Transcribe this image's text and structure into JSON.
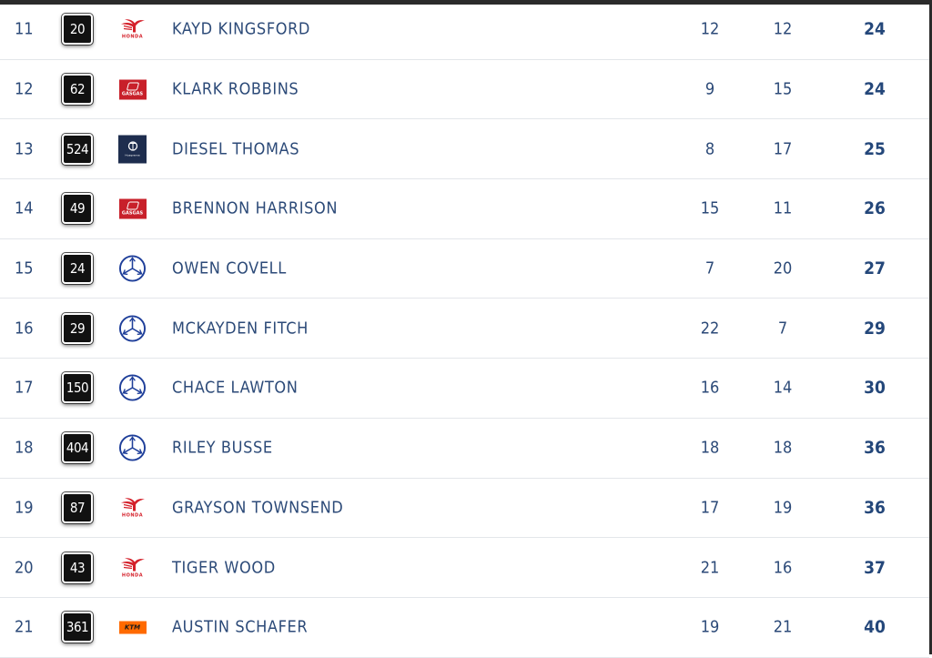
{
  "colors": {
    "text": "#2c4a78",
    "total": "#24477a",
    "plate": "#111111",
    "divider": "#e3e6ea"
  },
  "rows": [
    {
      "pos": "11",
      "number": "20",
      "brand": "honda",
      "name": "KAYD KINGSFORD",
      "moto1": "12",
      "moto2": "12",
      "total": "24"
    },
    {
      "pos": "12",
      "number": "62",
      "brand": "gasgas",
      "name": "KLARK ROBBINS",
      "moto1": "9",
      "moto2": "15",
      "total": "24"
    },
    {
      "pos": "13",
      "number": "524",
      "brand": "husqvarna",
      "name": "DIESEL THOMAS",
      "moto1": "8",
      "moto2": "17",
      "total": "25"
    },
    {
      "pos": "14",
      "number": "49",
      "brand": "gasgas",
      "name": "BRENNON HARRISON",
      "moto1": "15",
      "moto2": "11",
      "total": "26"
    },
    {
      "pos": "15",
      "number": "24",
      "brand": "yamaha",
      "name": "OWEN COVELL",
      "moto1": "7",
      "moto2": "20",
      "total": "27"
    },
    {
      "pos": "16",
      "number": "29",
      "brand": "yamaha",
      "name": "MCKAYDEN FITCH",
      "moto1": "22",
      "moto2": "7",
      "total": "29"
    },
    {
      "pos": "17",
      "number": "150",
      "brand": "yamaha",
      "name": "CHACE LAWTON",
      "moto1": "16",
      "moto2": "14",
      "total": "30"
    },
    {
      "pos": "18",
      "number": "404",
      "brand": "yamaha",
      "name": "RILEY BUSSE",
      "moto1": "18",
      "moto2": "18",
      "total": "36"
    },
    {
      "pos": "19",
      "number": "87",
      "brand": "honda",
      "name": "GRAYSON TOWNSEND",
      "moto1": "17",
      "moto2": "19",
      "total": "36"
    },
    {
      "pos": "20",
      "number": "43",
      "brand": "honda",
      "name": "TIGER WOOD",
      "moto1": "21",
      "moto2": "16",
      "total": "37"
    },
    {
      "pos": "21",
      "number": "361",
      "brand": "ktm",
      "name": "AUSTIN SCHAFER",
      "moto1": "19",
      "moto2": "21",
      "total": "40"
    }
  ],
  "logo_text": {
    "honda": "HONDA",
    "gasgas": "GASGAS",
    "husqvarna": "Husqvarna",
    "ktm": "KTM"
  }
}
